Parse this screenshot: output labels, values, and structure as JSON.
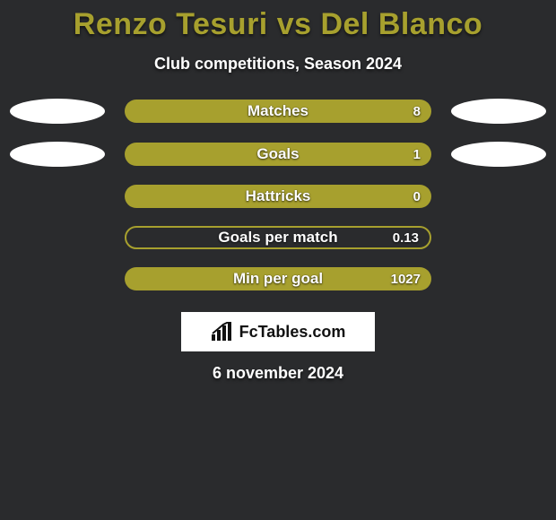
{
  "title_color": "#a7a02e",
  "title": "Renzo Tesuri vs Del Blanco",
  "subtitle": "Club competitions, Season 2024",
  "bar_styles": {
    "solid": {
      "background": "#a7a02e"
    },
    "outline": {
      "background": "transparent",
      "border_color": "#a7a02e",
      "border_width": 2
    }
  },
  "oval_color": "#ffffff",
  "stats": [
    {
      "label": "Matches",
      "value": "8",
      "style": "solid",
      "left_oval": true,
      "right_oval": true
    },
    {
      "label": "Goals",
      "value": "1",
      "style": "solid",
      "left_oval": true,
      "right_oval": true
    },
    {
      "label": "Hattricks",
      "value": "0",
      "style": "solid",
      "left_oval": false,
      "right_oval": false
    },
    {
      "label": "Goals per match",
      "value": "0.13",
      "style": "outline",
      "left_oval": false,
      "right_oval": false
    },
    {
      "label": "Min per goal",
      "value": "1027",
      "style": "solid",
      "left_oval": false,
      "right_oval": false
    }
  ],
  "brand": "FcTables.com",
  "date": "6 november 2024"
}
